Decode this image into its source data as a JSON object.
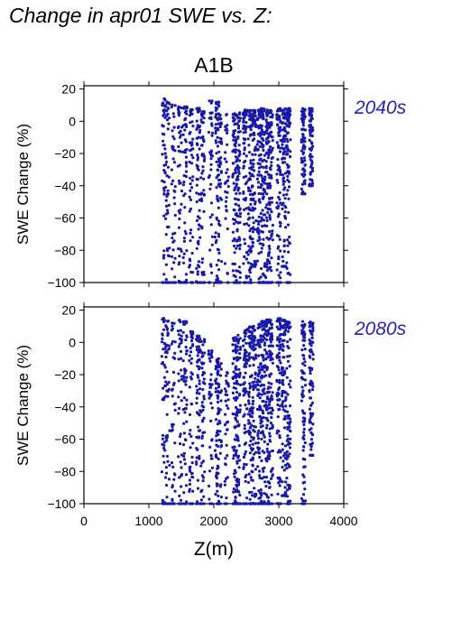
{
  "page_title": "Change in apr01 SWE vs. Z:",
  "colors": {
    "points": "#1a1aa8",
    "label": "#2525b0",
    "axis": "#000000"
  },
  "chart_data": {
    "type": "scatter",
    "title": "A1B",
    "xlabel": "Z(m)",
    "ylabel": "SWE Change (%)",
    "xlim": [
      0,
      4000
    ],
    "ylim": [
      -100,
      22
    ],
    "xticks": [
      "0",
      "1000",
      "2000",
      "3000",
      "4000"
    ],
    "yticks": [
      "20",
      "0",
      "−20",
      "−40",
      "−60",
      "−80",
      "−100"
    ],
    "grid": false,
    "panels": [
      {
        "label": "2040s",
        "columns": [
          {
            "x": 1230,
            "y_min": -100,
            "y_max": 14,
            "density": 0.45
          },
          {
            "x": 1290,
            "y_min": -100,
            "y_max": 12,
            "density": 0.4
          },
          {
            "x": 1380,
            "y_min": -100,
            "y_max": 10,
            "density": 0.35
          },
          {
            "x": 1480,
            "y_min": -100,
            "y_max": 9,
            "density": 0.4
          },
          {
            "x": 1560,
            "y_min": -100,
            "y_max": 9,
            "density": 0.5
          },
          {
            "x": 1650,
            "y_min": -100,
            "y_max": 8,
            "density": 0.5
          },
          {
            "x": 1760,
            "y_min": -100,
            "y_max": 8,
            "density": 0.65
          },
          {
            "x": 1830,
            "y_min": -100,
            "y_max": 6,
            "density": 0.55
          },
          {
            "x": 1950,
            "y_min": -100,
            "y_max": 13,
            "density": 0.35
          },
          {
            "x": 2050,
            "y_min": -100,
            "y_max": 12,
            "density": 0.55
          },
          {
            "x": 2090,
            "y_min": -100,
            "y_max": 4,
            "density": 0.5
          },
          {
            "x": 2200,
            "y_min": -100,
            "y_max": 6,
            "density": 0.3
          },
          {
            "x": 2320,
            "y_min": -100,
            "y_max": 5,
            "density": 0.85
          },
          {
            "x": 2380,
            "y_min": -100,
            "y_max": 6,
            "density": 0.8
          },
          {
            "x": 2480,
            "y_min": -100,
            "y_max": 7,
            "density": 0.75
          },
          {
            "x": 2560,
            "y_min": -100,
            "y_max": 7,
            "density": 0.9
          },
          {
            "x": 2620,
            "y_min": -90,
            "y_max": 7,
            "density": 0.85
          },
          {
            "x": 2700,
            "y_min": -100,
            "y_max": 7,
            "density": 0.9
          },
          {
            "x": 2760,
            "y_min": -100,
            "y_max": 8,
            "density": 0.95
          },
          {
            "x": 2830,
            "y_min": -100,
            "y_max": 7,
            "density": 0.95
          },
          {
            "x": 2880,
            "y_min": -100,
            "y_max": 7,
            "density": 0.85
          },
          {
            "x": 3000,
            "y_min": -100,
            "y_max": 8,
            "density": 0.95
          },
          {
            "x": 3080,
            "y_min": -90,
            "y_max": 8,
            "density": 0.9
          },
          {
            "x": 3150,
            "y_min": -100,
            "y_max": 8,
            "density": 0.9
          },
          {
            "x": 3380,
            "y_min": -45,
            "y_max": 8,
            "density": 0.95
          },
          {
            "x": 3500,
            "y_min": -40,
            "y_max": 8,
            "density": 0.95
          }
        ]
      },
      {
        "label": "2080s",
        "columns": [
          {
            "x": 1230,
            "y_min": -100,
            "y_max": 15,
            "density": 0.45
          },
          {
            "x": 1290,
            "y_min": -100,
            "y_max": 14,
            "density": 0.4
          },
          {
            "x": 1380,
            "y_min": -100,
            "y_max": 12,
            "density": 0.35
          },
          {
            "x": 1480,
            "y_min": -100,
            "y_max": 14,
            "density": 0.4
          },
          {
            "x": 1560,
            "y_min": -100,
            "y_max": 13,
            "density": 0.5
          },
          {
            "x": 1650,
            "y_min": -100,
            "y_max": 7,
            "density": 0.5
          },
          {
            "x": 1760,
            "y_min": -100,
            "y_max": 4,
            "density": 0.65
          },
          {
            "x": 1830,
            "y_min": -100,
            "y_max": 2,
            "density": 0.55
          },
          {
            "x": 1950,
            "y_min": -100,
            "y_max": -5,
            "density": 0.35
          },
          {
            "x": 2050,
            "y_min": -100,
            "y_max": -10,
            "density": 0.55
          },
          {
            "x": 2090,
            "y_min": -100,
            "y_max": -12,
            "density": 0.5
          },
          {
            "x": 2200,
            "y_min": -100,
            "y_max": -18,
            "density": 0.3
          },
          {
            "x": 2320,
            "y_min": -100,
            "y_max": 3,
            "density": 0.85
          },
          {
            "x": 2380,
            "y_min": -100,
            "y_max": 5,
            "density": 0.8
          },
          {
            "x": 2480,
            "y_min": -100,
            "y_max": 8,
            "density": 0.75
          },
          {
            "x": 2560,
            "y_min": -100,
            "y_max": 10,
            "density": 0.9
          },
          {
            "x": 2620,
            "y_min": -100,
            "y_max": 10,
            "density": 0.85
          },
          {
            "x": 2700,
            "y_min": -100,
            "y_max": 12,
            "density": 0.9
          },
          {
            "x": 2760,
            "y_min": -100,
            "y_max": 13,
            "density": 0.95
          },
          {
            "x": 2830,
            "y_min": -100,
            "y_max": 14,
            "density": 0.95
          },
          {
            "x": 2880,
            "y_min": -100,
            "y_max": 14,
            "density": 0.85
          },
          {
            "x": 3000,
            "y_min": -100,
            "y_max": 15,
            "density": 0.95
          },
          {
            "x": 3080,
            "y_min": -95,
            "y_max": 14,
            "density": 0.9
          },
          {
            "x": 3150,
            "y_min": -100,
            "y_max": 13,
            "density": 0.9
          },
          {
            "x": 3380,
            "y_min": -100,
            "y_max": 13,
            "density": 0.95
          },
          {
            "x": 3500,
            "y_min": -70,
            "y_max": 13,
            "density": 0.95
          }
        ]
      }
    ]
  }
}
